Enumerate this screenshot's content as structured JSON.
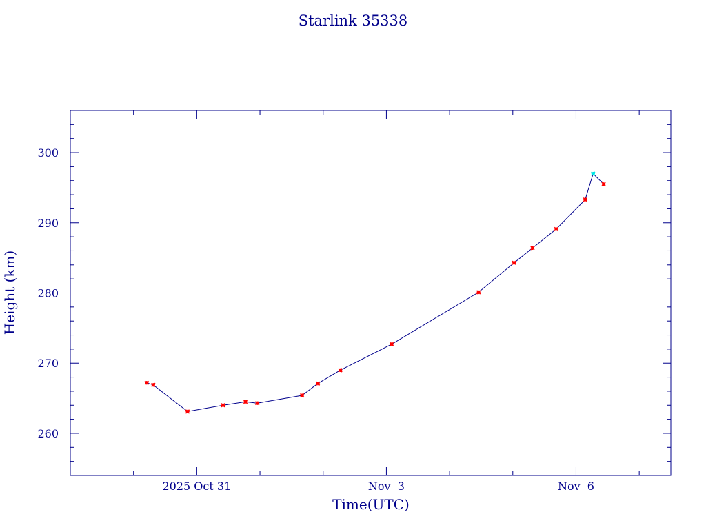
{
  "chart_data": {
    "type": "line",
    "title": "Starlink 35338",
    "xlabel": "Time(UTC)",
    "ylabel": "Height (km)",
    "x_axis_kind": "date (days)",
    "xlim": [
      "2025-10-29T00:00",
      "2025-11-07T12:00"
    ],
    "ylim": [
      254,
      306
    ],
    "y_major_ticks": [
      260,
      270,
      280,
      290,
      300
    ],
    "y_minor_step": 2,
    "x_major_ticks": [
      {
        "date": "2025-10-31T00:00",
        "label": "2025 Oct 31"
      },
      {
        "date": "2025-11-03T00:00",
        "label": "Nov  3"
      },
      {
        "date": "2025-11-06T00:00",
        "label": "Nov  6"
      }
    ],
    "x_minor_tick_days": [
      "2025-10-29T00:00",
      "2025-10-30T00:00",
      "2025-11-01T00:00",
      "2025-11-02T00:00",
      "2025-11-04T00:00",
      "2025-11-05T00:00",
      "2025-11-07T00:00"
    ],
    "grid": false,
    "legend": "none",
    "colors": {
      "frame": "#00008b",
      "line": "#00008b",
      "marker": "#ff0000",
      "highlight_marker": "#00e5e5"
    },
    "series": [
      {
        "x": [
          "2025-10-30T05:00",
          "2025-10-30T07:30",
          "2025-10-30T20:30",
          "2025-10-31T10:00",
          "2025-10-31T18:30",
          "2025-10-31T23:00",
          "2025-11-01T16:00",
          "2025-11-01T22:00",
          "2025-11-02T06:30",
          "2025-11-03T02:00",
          "2025-11-04T11:00",
          "2025-11-05T00:30",
          "2025-11-05T07:30",
          "2025-11-05T16:30",
          "2025-11-06T03:30",
          "2025-11-06T06:30",
          "2025-11-06T10:30"
        ],
        "y": [
          267.2,
          266.9,
          263.1,
          264.0,
          264.5,
          264.3,
          265.4,
          267.1,
          269.0,
          272.7,
          280.1,
          284.3,
          286.4,
          289.1,
          293.3,
          297.0,
          295.5
        ],
        "highlight_index": 15
      }
    ]
  }
}
